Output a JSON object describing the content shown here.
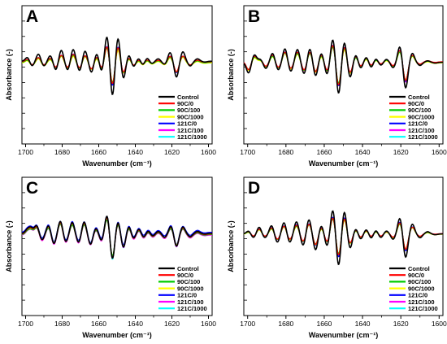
{
  "chart_data": [
    {
      "panel": "A",
      "type": "line",
      "xlabel": "Wavenumber (cm⁻¹)",
      "ylabel": "Absorbance (-)",
      "xlim": [
        1702,
        1598
      ],
      "x_ticks": [
        1700,
        1680,
        1660,
        1640,
        1620,
        1600
      ],
      "x_minor_ticks": [
        1690,
        1670,
        1650,
        1630,
        1610
      ],
      "legend_position": "bottom-right",
      "series_peaks": [
        {
          "name": "Control",
          "color": "#000000",
          "scale": 1.35,
          "shift": 0,
          "baseline": 0.1
        },
        {
          "name": "90C/0",
          "color": "#ff0000",
          "scale": 0.85,
          "shift": 0.3,
          "baseline": 0.05
        },
        {
          "name": "90C/100",
          "color": "#00cc00",
          "scale": 0.82,
          "shift": -0.2,
          "baseline": 0.0
        },
        {
          "name": "90C/1000",
          "color": "#ffff00",
          "scale": 0.8,
          "shift": 0.5,
          "baseline": -0.05
        },
        {
          "name": "121C/0",
          "color": "#0000ff",
          "scale": 0.9,
          "shift": -0.4,
          "baseline": 0.03
        },
        {
          "name": "121C/100",
          "color": "#ff00ff",
          "scale": 0.88,
          "shift": 0.2,
          "baseline": 0.0
        },
        {
          "name": "121C/1000",
          "color": "#00ffff",
          "scale": 0.86,
          "shift": 0.0,
          "baseline": 0.02
        }
      ],
      "peaks": [
        {
          "x": 1699,
          "a": 0.25
        },
        {
          "x": 1696.5,
          "a": -0.3
        },
        {
          "x": 1693,
          "a": 0.45
        },
        {
          "x": 1690,
          "a": -0.3
        },
        {
          "x": 1686.5,
          "a": 0.35
        },
        {
          "x": 1683.5,
          "a": -0.55
        },
        {
          "x": 1680.5,
          "a": 0.7
        },
        {
          "x": 1677,
          "a": -0.55
        },
        {
          "x": 1674,
          "a": 0.75
        },
        {
          "x": 1670.5,
          "a": -0.6
        },
        {
          "x": 1667.5,
          "a": 0.65
        },
        {
          "x": 1664,
          "a": -0.7
        },
        {
          "x": 1661,
          "a": 0.5
        },
        {
          "x": 1658.5,
          "a": -0.65
        },
        {
          "x": 1655.5,
          "a": 1.6
        },
        {
          "x": 1652.5,
          "a": -2.2
        },
        {
          "x": 1649.5,
          "a": 1.5
        },
        {
          "x": 1646.5,
          "a": -1.1
        },
        {
          "x": 1643.5,
          "a": 0.4
        },
        {
          "x": 1641,
          "a": -0.35
        },
        {
          "x": 1638,
          "a": 0.2
        },
        {
          "x": 1636,
          "a": -0.25
        },
        {
          "x": 1633.5,
          "a": 0.2
        },
        {
          "x": 1631,
          "a": -0.15
        },
        {
          "x": 1627.5,
          "a": 0.15
        },
        {
          "x": 1624,
          "a": -0.2
        },
        {
          "x": 1621,
          "a": 0.55
        },
        {
          "x": 1617.5,
          "a": -1.0
        },
        {
          "x": 1614,
          "a": 0.6
        },
        {
          "x": 1610,
          "a": -0.3
        },
        {
          "x": 1606,
          "a": 0.15
        },
        {
          "x": 1602,
          "a": -0.05
        }
      ]
    },
    {
      "panel": "B",
      "type": "line",
      "xlabel": "Wavenumber (cm⁻¹)",
      "ylabel": "Absorbance (-)",
      "xlim": [
        1702,
        1598
      ],
      "x_ticks": [
        1700,
        1680,
        1660,
        1640,
        1620,
        1600
      ],
      "x_minor_ticks": [
        1690,
        1670,
        1650,
        1630,
        1610
      ],
      "legend_position": "bottom-right",
      "series_peaks": [
        {
          "name": "Control",
          "color": "#000000",
          "scale": 1.3,
          "shift": 0,
          "baseline": 0.0
        },
        {
          "name": "90C/0",
          "color": "#ff0000",
          "scale": 0.95,
          "shift": 0.2,
          "baseline": 0.05
        },
        {
          "name": "90C/100",
          "color": "#00cc00",
          "scale": 0.9,
          "shift": -0.3,
          "baseline": 0.0
        },
        {
          "name": "90C/1000",
          "color": "#ffff00",
          "scale": 0.92,
          "shift": 0.4,
          "baseline": -0.05
        },
        {
          "name": "121C/0",
          "color": "#0000ff",
          "scale": 0.98,
          "shift": -0.2,
          "baseline": 0.03
        },
        {
          "name": "121C/100",
          "color": "#ff00ff",
          "scale": 1.0,
          "shift": 0.1,
          "baseline": 0.0
        },
        {
          "name": "121C/1000",
          "color": "#00ffff",
          "scale": 0.93,
          "shift": 0.0,
          "baseline": 0.02
        }
      ],
      "peaks": [
        {
          "x": 1699.5,
          "a": -0.7
        },
        {
          "x": 1696.5,
          "a": 0.5
        },
        {
          "x": 1693.5,
          "a": 0.2
        },
        {
          "x": 1690.5,
          "a": -0.4
        },
        {
          "x": 1687,
          "a": 0.6
        },
        {
          "x": 1684,
          "a": -0.5
        },
        {
          "x": 1680.5,
          "a": 0.9
        },
        {
          "x": 1677.5,
          "a": -0.6
        },
        {
          "x": 1674,
          "a": 0.85
        },
        {
          "x": 1670.5,
          "a": -0.75
        },
        {
          "x": 1667.5,
          "a": 0.9
        },
        {
          "x": 1664.5,
          "a": -0.9
        },
        {
          "x": 1661.5,
          "a": 0.6
        },
        {
          "x": 1658.5,
          "a": -0.8
        },
        {
          "x": 1655.5,
          "a": 1.55
        },
        {
          "x": 1652.5,
          "a": -2.1
        },
        {
          "x": 1649.5,
          "a": 1.35
        },
        {
          "x": 1646.5,
          "a": -1.0
        },
        {
          "x": 1643.5,
          "a": 0.5
        },
        {
          "x": 1641,
          "a": -0.4
        },
        {
          "x": 1638,
          "a": 0.35
        },
        {
          "x": 1635.5,
          "a": -0.35
        },
        {
          "x": 1633,
          "a": 0.25
        },
        {
          "x": 1630.5,
          "a": -0.2
        },
        {
          "x": 1627.5,
          "a": 0.2
        },
        {
          "x": 1624,
          "a": -0.35
        },
        {
          "x": 1620.5,
          "a": 1.05
        },
        {
          "x": 1617.5,
          "a": -1.7
        },
        {
          "x": 1614,
          "a": 0.6
        },
        {
          "x": 1610,
          "a": -0.2
        },
        {
          "x": 1606,
          "a": 0.1
        },
        {
          "x": 1602,
          "a": -0.05
        }
      ]
    },
    {
      "panel": "C",
      "type": "line",
      "xlabel": "Wavenumber (cm⁻¹)",
      "ylabel": "Absorbance (-)",
      "xlim": [
        1702,
        1598
      ],
      "x_ticks": [
        1700,
        1680,
        1660,
        1640,
        1620,
        1600
      ],
      "x_minor_ticks": [
        1690,
        1670,
        1650,
        1630,
        1610
      ],
      "legend_position": "bottom-right",
      "series_peaks": [
        {
          "name": "Control",
          "color": "#000000",
          "scale": 1.1,
          "shift": 0,
          "baseline": 0.05
        },
        {
          "name": "90C/0",
          "color": "#ff0000",
          "scale": 1.05,
          "shift": 0.2,
          "baseline": 0.0
        },
        {
          "name": "90C/100",
          "color": "#00cc00",
          "scale": 0.95,
          "shift": -0.2,
          "baseline": -0.05
        },
        {
          "name": "90C/1000",
          "color": "#ffff00",
          "scale": 0.98,
          "shift": 0.3,
          "baseline": 0.0
        },
        {
          "name": "121C/0",
          "color": "#0000ff",
          "scale": 1.05,
          "shift": -0.3,
          "baseline": 0.15
        },
        {
          "name": "121C/100",
          "color": "#ff00ff",
          "scale": 1.0,
          "shift": 0.1,
          "baseline": -0.1
        },
        {
          "name": "121C/1000",
          "color": "#00ffff",
          "scale": 1.12,
          "shift": 0.0,
          "baseline": 0.0
        }
      ],
      "peaks": [
        {
          "x": 1699,
          "a": 0.3
        },
        {
          "x": 1697,
          "a": 0.4
        },
        {
          "x": 1694,
          "a": 0.6
        },
        {
          "x": 1691,
          "a": -0.5
        },
        {
          "x": 1687.5,
          "a": 0.6
        },
        {
          "x": 1684.5,
          "a": -0.8
        },
        {
          "x": 1681,
          "a": 0.95
        },
        {
          "x": 1678,
          "a": -0.65
        },
        {
          "x": 1674.5,
          "a": 0.85
        },
        {
          "x": 1671,
          "a": -0.7
        },
        {
          "x": 1668,
          "a": 0.9
        },
        {
          "x": 1664.5,
          "a": -0.85
        },
        {
          "x": 1661.5,
          "a": 0.4
        },
        {
          "x": 1658.5,
          "a": -0.55
        },
        {
          "x": 1655.5,
          "a": 1.4
        },
        {
          "x": 1652.5,
          "a": -2.0
        },
        {
          "x": 1649.5,
          "a": 0.9
        },
        {
          "x": 1646.5,
          "a": -1.1
        },
        {
          "x": 1643.5,
          "a": 0.55
        },
        {
          "x": 1641,
          "a": -0.4
        },
        {
          "x": 1638,
          "a": 0.35
        },
        {
          "x": 1635.5,
          "a": -0.3
        },
        {
          "x": 1633,
          "a": 0.2
        },
        {
          "x": 1630.5,
          "a": -0.2
        },
        {
          "x": 1627.5,
          "a": 0.15
        },
        {
          "x": 1624,
          "a": -0.3
        },
        {
          "x": 1620.5,
          "a": 0.55
        },
        {
          "x": 1617.5,
          "a": -1.0
        },
        {
          "x": 1614,
          "a": 0.5
        },
        {
          "x": 1610,
          "a": -0.25
        },
        {
          "x": 1606,
          "a": 0.15
        },
        {
          "x": 1602,
          "a": -0.05
        }
      ]
    },
    {
      "panel": "D",
      "type": "line",
      "xlabel": "Wavenumber (cm⁻¹)",
      "ylabel": "Absorbance (-)",
      "xlim": [
        1702,
        1598
      ],
      "x_ticks": [
        1700,
        1680,
        1660,
        1640,
        1620,
        1600
      ],
      "x_minor_ticks": [
        1690,
        1670,
        1650,
        1630,
        1610
      ],
      "legend_position": "bottom-right",
      "series_peaks": [
        {
          "name": "Control",
          "color": "#000000",
          "scale": 1.3,
          "shift": 0,
          "baseline": 0.0
        },
        {
          "name": "90C/0",
          "color": "#ff0000",
          "scale": 0.88,
          "shift": 0.2,
          "baseline": 0.03
        },
        {
          "name": "90C/100",
          "color": "#00cc00",
          "scale": 0.85,
          "shift": -0.2,
          "baseline": 0.0
        },
        {
          "name": "90C/1000",
          "color": "#ffff00",
          "scale": 0.86,
          "shift": 0.3,
          "baseline": -0.03
        },
        {
          "name": "121C/0",
          "color": "#0000ff",
          "scale": 0.95,
          "shift": -0.3,
          "baseline": 0.02
        },
        {
          "name": "121C/100",
          "color": "#ff00ff",
          "scale": 0.9,
          "shift": 0.1,
          "baseline": 0.0
        },
        {
          "name": "121C/1000",
          "color": "#00ffff",
          "scale": 0.92,
          "shift": 0.0,
          "baseline": 0.01
        }
      ],
      "peaks": [
        {
          "x": 1699.5,
          "a": 0.2
        },
        {
          "x": 1697,
          "a": -0.25
        },
        {
          "x": 1694,
          "a": 0.45
        },
        {
          "x": 1691,
          "a": -0.25
        },
        {
          "x": 1687.5,
          "a": 0.55
        },
        {
          "x": 1684.5,
          "a": -0.55
        },
        {
          "x": 1681,
          "a": 0.75
        },
        {
          "x": 1678,
          "a": -0.55
        },
        {
          "x": 1674.5,
          "a": 0.8
        },
        {
          "x": 1671,
          "a": -0.75
        },
        {
          "x": 1668,
          "a": 0.95
        },
        {
          "x": 1664.5,
          "a": -1.05
        },
        {
          "x": 1661.5,
          "a": 0.55
        },
        {
          "x": 1658.5,
          "a": -0.8
        },
        {
          "x": 1655.5,
          "a": 1.6
        },
        {
          "x": 1652.5,
          "a": -2.1
        },
        {
          "x": 1649.5,
          "a": 1.5
        },
        {
          "x": 1646.5,
          "a": -0.95
        },
        {
          "x": 1643.5,
          "a": 0.35
        },
        {
          "x": 1641,
          "a": -0.35
        },
        {
          "x": 1638,
          "a": 0.3
        },
        {
          "x": 1635.5,
          "a": -0.3
        },
        {
          "x": 1633,
          "a": 0.25
        },
        {
          "x": 1630.5,
          "a": -0.25
        },
        {
          "x": 1627.5,
          "a": 0.2
        },
        {
          "x": 1624,
          "a": -0.35
        },
        {
          "x": 1620.5,
          "a": 1.05
        },
        {
          "x": 1617.5,
          "a": -1.55
        },
        {
          "x": 1614,
          "a": 0.65
        },
        {
          "x": 1610,
          "a": -0.25
        },
        {
          "x": 1606,
          "a": 0.15
        },
        {
          "x": 1602,
          "a": -0.05
        }
      ]
    }
  ]
}
